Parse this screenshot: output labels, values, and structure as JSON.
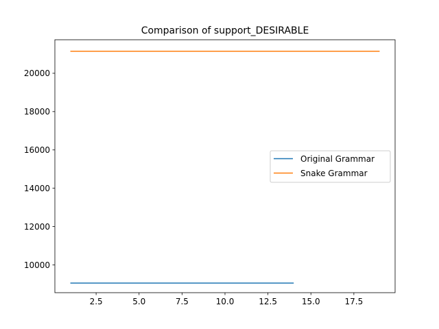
{
  "chart_data": {
    "type": "line",
    "title": "Comparison of support_DESIRABLE",
    "xlabel": "",
    "ylabel": "",
    "xlim": [
      0.1,
      19.9
    ],
    "ylim": [
      8550,
      21750
    ],
    "xticks": [
      2.5,
      5.0,
      7.5,
      10.0,
      12.5,
      15.0,
      17.5
    ],
    "xtick_labels": [
      "2.5",
      "5.0",
      "7.5",
      "10.0",
      "12.5",
      "15.0",
      "17.5"
    ],
    "yticks": [
      10000,
      12000,
      14000,
      16000,
      18000,
      20000
    ],
    "ytick_labels": [
      "10000",
      "12000",
      "14000",
      "16000",
      "18000",
      "20000"
    ],
    "grid": false,
    "legend_position": "center-right",
    "series": [
      {
        "name": "Original Grammar",
        "color": "#1f77b4",
        "x": [
          1,
          2,
          3,
          4,
          5,
          6,
          7,
          8,
          9,
          10,
          11,
          12,
          13,
          14
        ],
        "y": [
          9050,
          9050,
          9050,
          9050,
          9050,
          9050,
          9050,
          9050,
          9050,
          9050,
          9050,
          9050,
          9050,
          9050
        ]
      },
      {
        "name": "Snake Grammar",
        "color": "#ff7f0e",
        "x": [
          1,
          2,
          3,
          4,
          5,
          6,
          7,
          8,
          9,
          10,
          11,
          12,
          13,
          14,
          15,
          16,
          17,
          18,
          19
        ],
        "y": [
          21150,
          21150,
          21150,
          21150,
          21150,
          21150,
          21150,
          21150,
          21150,
          21150,
          21150,
          21150,
          21150,
          21150,
          21150,
          21150,
          21150,
          21150,
          21150
        ]
      }
    ]
  }
}
